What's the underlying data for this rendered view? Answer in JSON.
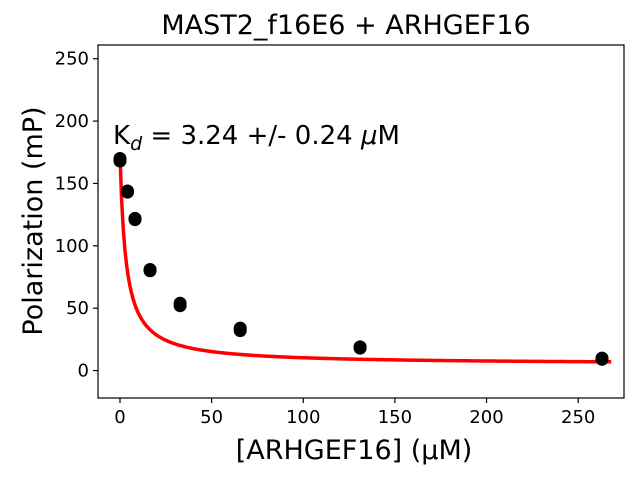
{
  "chart_data": {
    "type": "scatter",
    "title": "MAST2_f16E6 + ARHGEF16",
    "xlabel": "[ARHGEF16] (μM)",
    "ylabel": "Polarization (mP)",
    "xlim": [
      -12,
      275
    ],
    "ylim": [
      -22,
      261
    ],
    "xticks": [
      0,
      50,
      100,
      150,
      200,
      250
    ],
    "yticks": [
      0,
      50,
      100,
      150,
      200,
      250
    ],
    "grid": false,
    "legend": "none",
    "annotation": {
      "prefix": "K",
      "subscript": "d",
      "suffix": " = 3.24 +/- 0.24 ",
      "unit_mu": "μ",
      "unit": "M"
    },
    "series": [
      {
        "kind": "points",
        "color": "#000000",
        "x": [
          0,
          0,
          4.1,
          4.1,
          8.2,
          8.2,
          16.4,
          16.4,
          32.8,
          32.8,
          65.6,
          65.6,
          131,
          131,
          263,
          263
        ],
        "y": [
          170,
          168,
          144,
          143,
          122,
          121,
          81,
          80,
          54,
          52,
          34,
          32,
          19,
          18,
          10,
          9
        ]
      },
      {
        "kind": "fit",
        "color": "#ff0000",
        "model": "y = Ymin + (Ymax - Ymin) * Kd / (Kd + x)",
        "Kd": 3.24,
        "Ymax": 173,
        "Ymin": 5,
        "x_range": [
          0,
          268
        ]
      }
    ]
  }
}
